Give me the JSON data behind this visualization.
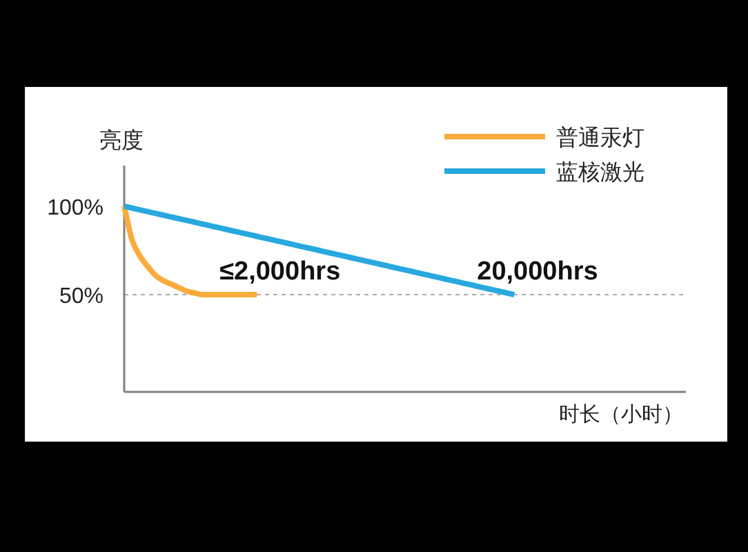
{
  "chart_data": {
    "type": "line",
    "categories": [
      null,
      null,
      null,
      null,
      null,
      null,
      null,
      null,
      null,
      null,
      null,
      null,
      null,
      null,
      null,
      null,
      null,
      null,
      null,
      null,
      null,
      null,
      null,
      null,
      null,
      null,
      null,
      null,
      null,
      null,
      null,
      null,
      null,
      null,
      null,
      null,
      null,
      null,
      null,
      null,
      null,
      null,
      null,
      null,
      null,
      null,
      null,
      null,
      null,
      null,
      null,
      null,
      null,
      null,
      null,
      null,
      null,
      null,
      null,
      null,
      null,
      null,
      null,
      null,
      null,
      null,
      null,
      null,
      null,
      null,
      null,
      null,
      null
    ],
    "series": [
      {
        "name": "普通汞灯",
        "color": "#f9ab3c",
        "values": [
          100,
          81,
          72,
          66,
          61,
          58,
          56,
          54,
          52,
          51,
          50,
          50,
          50,
          50,
          50,
          50,
          50,
          50,
          null,
          null,
          null,
          null,
          null,
          null,
          null,
          null,
          null,
          null,
          null,
          null,
          null,
          null,
          null,
          null,
          null,
          null,
          null,
          null,
          null,
          null,
          null,
          null,
          null,
          null,
          null,
          null,
          null,
          null,
          null,
          null,
          null,
          null,
          null,
          null,
          null,
          null,
          null,
          null,
          null,
          null,
          null,
          null,
          null,
          null,
          null,
          null,
          null,
          null,
          null,
          null,
          null,
          null,
          null
        ]
      },
      {
        "name": "蓝核激光",
        "color": "#29a8e0",
        "values": [
          100,
          99,
          98,
          97,
          96,
          95,
          94,
          93,
          92,
          91,
          90,
          89,
          88,
          87,
          86,
          85,
          84,
          83,
          82,
          81,
          80,
          79,
          78,
          77,
          76,
          75,
          74,
          73,
          72,
          71,
          70,
          69,
          68,
          67,
          66,
          65,
          64,
          63,
          62,
          61,
          60,
          59,
          58,
          57,
          56,
          55,
          54,
          53,
          52,
          51,
          50,
          null,
          null,
          null,
          null,
          null,
          null,
          null,
          null,
          null,
          null,
          null,
          null,
          null,
          null,
          null,
          null,
          null,
          null,
          null,
          null,
          null,
          null
        ]
      }
    ],
    "ylim": [
      -5,
      123
    ],
    "yticks": [
      {
        "value": 100,
        "label": "100%"
      },
      {
        "value": 50,
        "label": "50%"
      }
    ],
    "ylabel": "亮度",
    "xlabel": "时长（小时）",
    "ref_lines": [
      {
        "axis": "y",
        "value": 50,
        "color": "#aaaaaa",
        "line_style": "dashed"
      }
    ],
    "annotations": [
      "≤2,000hrs",
      "20,000hrs"
    ],
    "legend": "top right",
    "tick_labels": "y"
  }
}
